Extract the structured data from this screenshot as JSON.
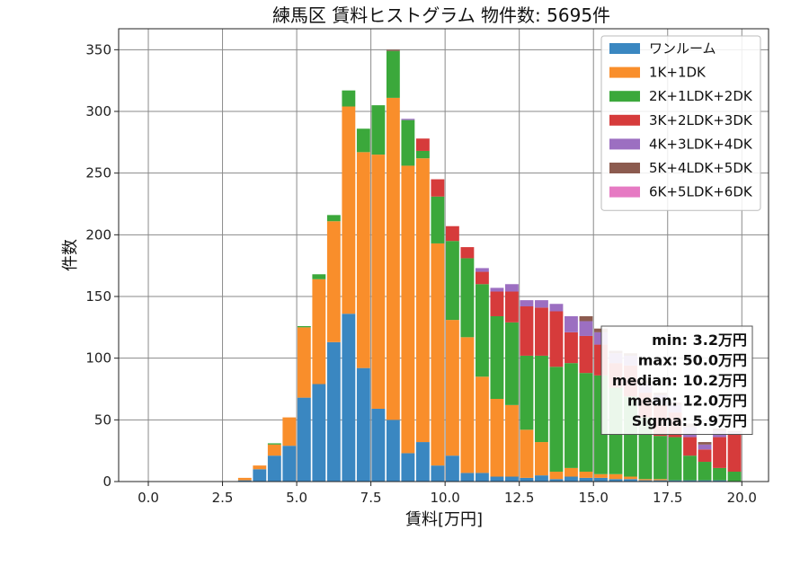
{
  "chart_data": {
    "type": "bar",
    "stacked": true,
    "title": "練馬区 賃料ヒストグラム 物件数: 5695件",
    "xlabel": "賃料[万円]",
    "ylabel": "件数",
    "xlim": [
      -1.0,
      20.9
    ],
    "ylim": [
      0,
      367
    ],
    "xticks": [
      0.0,
      2.5,
      5.0,
      7.5,
      10.0,
      12.5,
      15.0,
      17.5,
      20.0
    ],
    "xtick_labels": [
      "0.0",
      "2.5",
      "5.0",
      "7.5",
      "10.0",
      "12.5",
      "15.0",
      "17.5",
      "20.0"
    ],
    "yticks": [
      0,
      50,
      100,
      150,
      200,
      250,
      300,
      350
    ],
    "ytick_labels": [
      "0",
      "50",
      "100",
      "150",
      "200",
      "250",
      "300",
      "350"
    ],
    "grid": true,
    "legend_position": "top-right",
    "bin_width": 0.5,
    "bin_starts": [
      3.0,
      3.5,
      4.0,
      4.5,
      5.0,
      5.5,
      6.0,
      6.5,
      7.0,
      7.5,
      8.0,
      8.5,
      9.0,
      9.5,
      10.0,
      10.5,
      11.0,
      11.5,
      12.0,
      12.5,
      13.0,
      13.5,
      14.0,
      14.5,
      15.0,
      15.5,
      16.0,
      16.5,
      17.0,
      17.5,
      18.0,
      18.5,
      19.0,
      19.5
    ],
    "series": [
      {
        "name": "ワンルーム",
        "color": "#3a87c1",
        "values": [
          1,
          10,
          21,
          29,
          68,
          79,
          113,
          136,
          92,
          59,
          50,
          23,
          32,
          13,
          21,
          7,
          7,
          4,
          4,
          3,
          5,
          2,
          4,
          3,
          3,
          2,
          2,
          1,
          1,
          1,
          1,
          1,
          1,
          0
        ]
      },
      {
        "name": "1K+1DK",
        "color": "#f98e2b",
        "values": [
          2,
          3,
          9,
          23,
          57,
          85,
          98,
          168,
          175,
          206,
          261,
          233,
          230,
          180,
          110,
          110,
          78,
          63,
          58,
          39,
          27,
          6,
          7,
          5,
          3,
          4,
          2,
          1,
          1,
          0,
          0,
          0,
          0,
          0
        ]
      },
      {
        "name": "2K+1LDK+2DK",
        "color": "#3ba83b",
        "values": [
          0,
          0,
          1,
          0,
          1,
          4,
          5,
          13,
          19,
          40,
          38,
          37,
          6,
          38,
          64,
          64,
          75,
          67,
          67,
          60,
          70,
          85,
          85,
          80,
          80,
          70,
          65,
          50,
          35,
          35,
          20,
          15,
          10,
          8
        ]
      },
      {
        "name": "3K+2LDK+3DK",
        "color": "#d63b3b",
        "values": [
          0,
          0,
          0,
          0,
          0,
          0,
          0,
          0,
          0,
          0,
          0,
          0,
          10,
          14,
          12,
          9,
          10,
          20,
          25,
          40,
          39,
          45,
          25,
          30,
          25,
          20,
          25,
          20,
          25,
          20,
          15,
          10,
          25,
          30
        ]
      },
      {
        "name": "4K+3LDK+4DK",
        "color": "#9c6fc1",
        "values": [
          0,
          0,
          0,
          0,
          0,
          0,
          0,
          0,
          0,
          0,
          0,
          1,
          0,
          0,
          0,
          0,
          3,
          3,
          6,
          5,
          6,
          6,
          13,
          12,
          10,
          8,
          8,
          8,
          8,
          6,
          8,
          4,
          5,
          2
        ]
      },
      {
        "name": "5K+4LDK+5DK",
        "color": "#8c5b4f",
        "values": [
          0,
          0,
          0,
          0,
          0,
          0,
          0,
          0,
          0,
          0,
          1,
          0,
          0,
          0,
          0,
          0,
          0,
          0,
          0,
          0,
          0,
          0,
          0,
          4,
          3,
          2,
          2,
          2,
          2,
          2,
          3,
          2,
          2,
          1
        ]
      },
      {
        "name": "6K+5LDK+6DK",
        "color": "#e67ac3",
        "values": [
          0,
          0,
          0,
          0,
          0,
          0,
          0,
          0,
          0,
          0,
          0,
          0,
          0,
          0,
          0,
          0,
          0,
          0,
          0,
          0,
          0,
          0,
          0,
          0,
          0,
          0,
          0,
          0,
          0,
          0,
          0,
          0,
          0,
          0
        ]
      }
    ],
    "stats": [
      "min: 3.2万円",
      "max: 50.0万円",
      "median: 10.2万円",
      "mean: 12.0万円",
      "Sigma: 5.9万円"
    ]
  }
}
